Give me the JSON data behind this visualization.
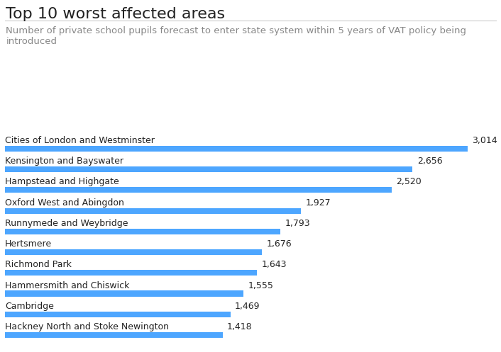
{
  "title": "Top 10 worst affected areas",
  "subtitle": "Number of private school pupils forecast to enter state system within 5 years of VAT policy being\nintroduced",
  "categories": [
    "Cities of London and Westminster",
    "Kensington and Bayswater",
    "Hampstead and Highgate",
    "Oxford West and Abingdon",
    "Runnymede and Weybridge",
    "Hertsmere",
    "Richmond Park",
    "Hammersmith and Chiswick",
    "Cambridge",
    "Hackney North and Stoke Newington"
  ],
  "values": [
    3014,
    2656,
    2520,
    1927,
    1793,
    1676,
    1643,
    1555,
    1469,
    1418
  ],
  "bar_color": "#4da6ff",
  "background_color": "#ffffff",
  "title_fontsize": 16,
  "subtitle_fontsize": 9.5,
  "label_fontsize": 9,
  "value_fontsize": 9,
  "title_color": "#222222",
  "subtitle_color": "#888888",
  "label_color": "#222222",
  "value_color": "#222222",
  "xlim_max": 3200,
  "separator_color": "#cccccc"
}
